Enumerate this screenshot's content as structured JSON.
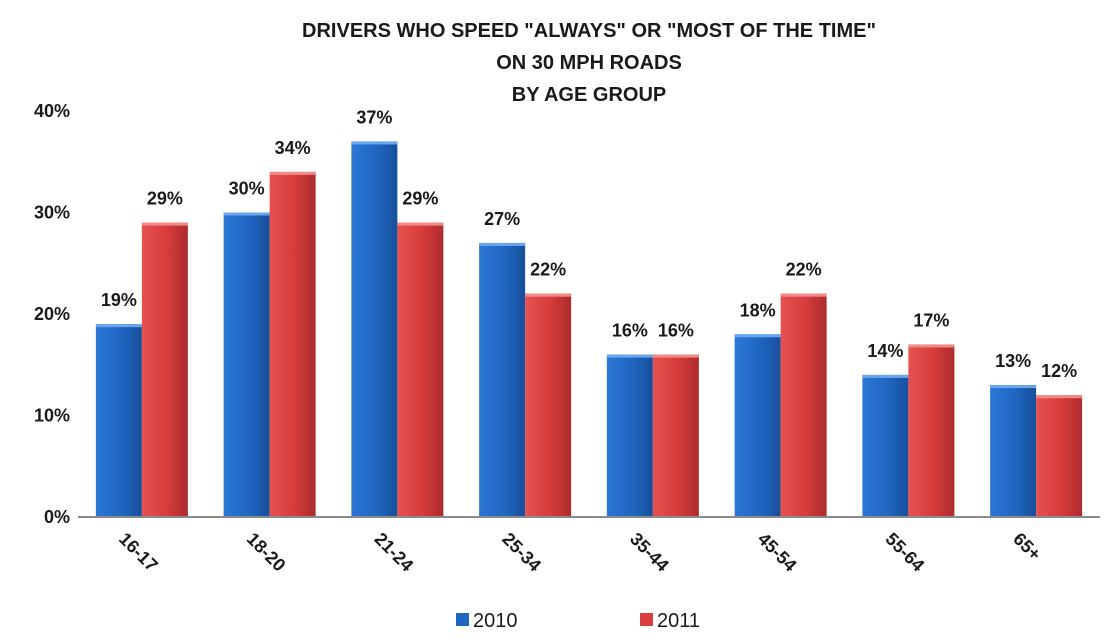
{
  "chart_data": {
    "type": "bar",
    "title_lines": [
      "DRIVERS WHO SPEED \"ALWAYS\" OR \"MOST OF THE TIME\"",
      "ON 30 MPH ROADS",
      "BY AGE GROUP"
    ],
    "xlabel": "",
    "ylabel": "",
    "categories": [
      "16-17",
      "18-20",
      "21-24",
      "25-34",
      "35-44",
      "45-54",
      "55-64",
      "65+"
    ],
    "series": [
      {
        "name": "2010",
        "color": "#1f66c1",
        "values": [
          19,
          30,
          37,
          27,
          16,
          18,
          14,
          13
        ],
        "labels": [
          "19%",
          "30%",
          "37%",
          "27%",
          "16%",
          "18%",
          "14%",
          "13%"
        ]
      },
      {
        "name": "2011",
        "color": "#d9403f",
        "values": [
          29,
          34,
          29,
          22,
          16,
          22,
          17,
          12
        ],
        "labels": [
          "29%",
          "34%",
          "29%",
          "22%",
          "16%",
          "22%",
          "17%",
          "12%"
        ]
      }
    ],
    "ylim": [
      0,
      40
    ],
    "yticks": [
      0,
      10,
      20,
      30,
      40
    ],
    "ytick_labels": [
      "0%",
      "10%",
      "20%",
      "30%",
      "40%"
    ],
    "grid": false,
    "legend_position": "bottom"
  }
}
